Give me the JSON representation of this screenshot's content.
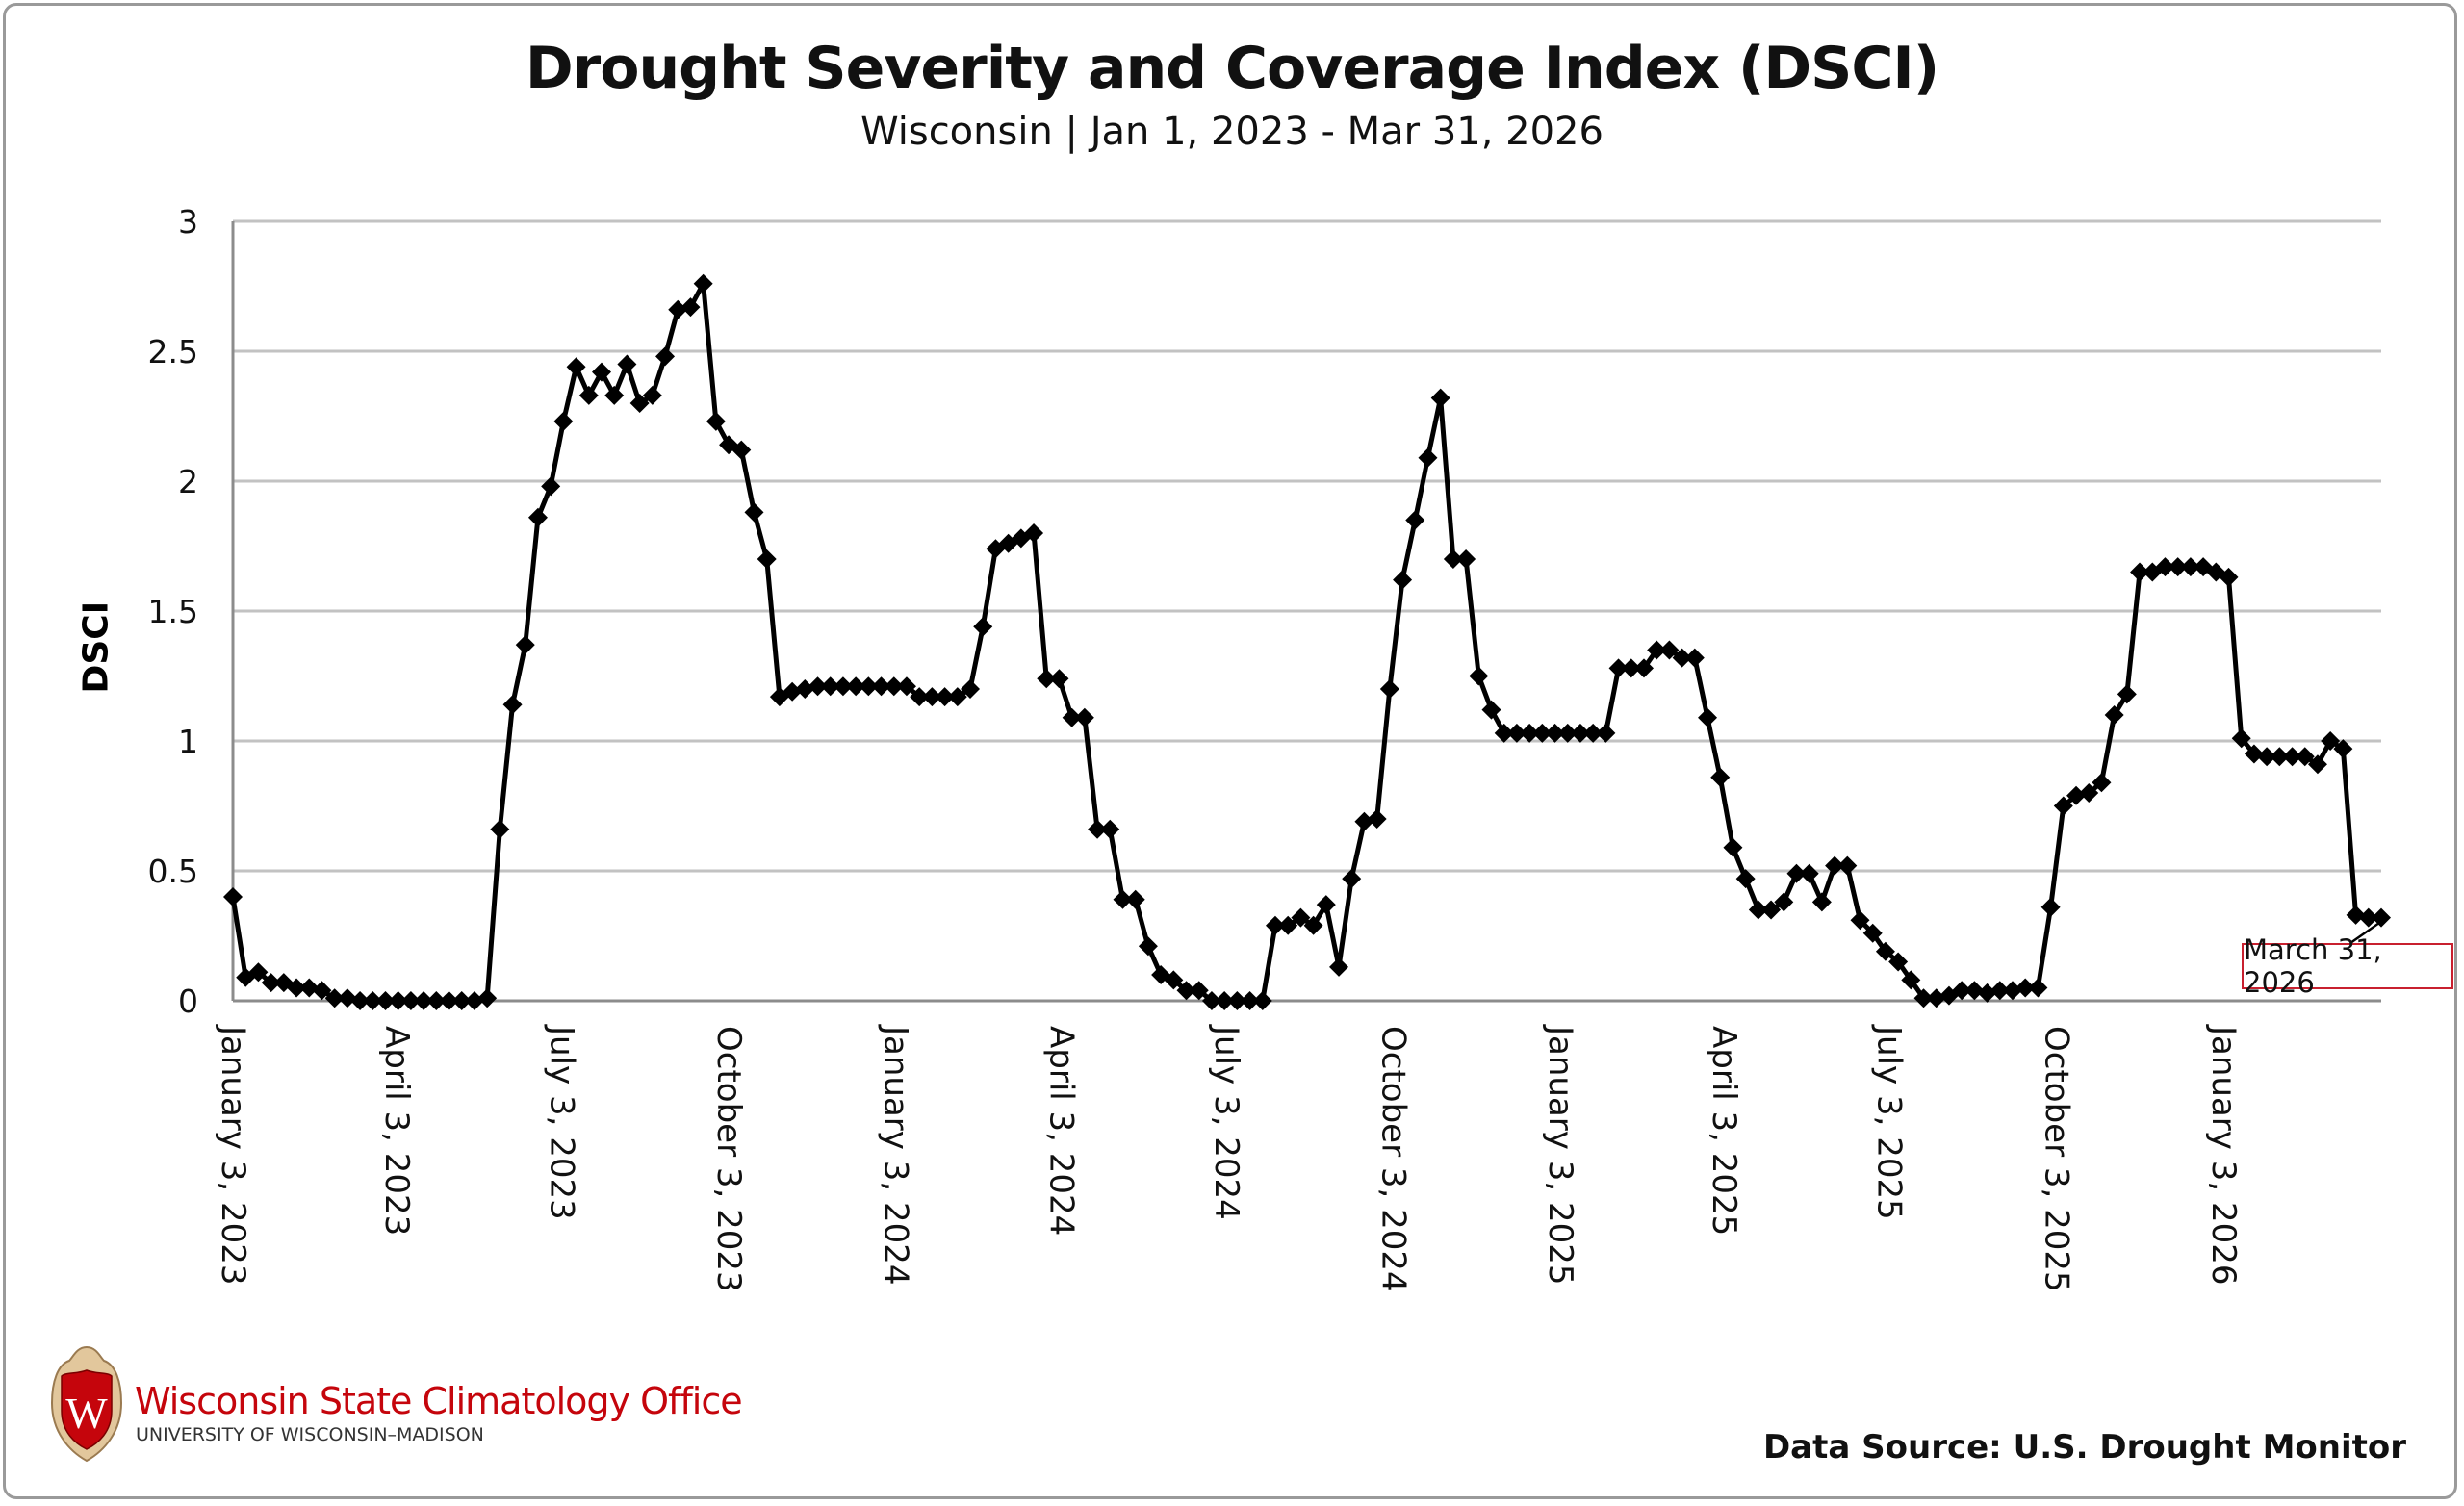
{
  "chart_data": {
    "type": "line",
    "title": "Drought Severity and Coverage Index (DSCI)",
    "subtitle": "Wisconsin | Jan 1, 2023 - Mar 31, 2026",
    "xlabel": "",
    "ylabel": "DSCI",
    "ylim": [
      0,
      3
    ],
    "yticks": [
      "0",
      "0.5",
      "1",
      "1.5",
      "2",
      "2.5",
      "3"
    ],
    "grid": true,
    "marker": "diamond",
    "series_color": "#000000",
    "x_start": "2023-01-03",
    "x_interval_days": 7,
    "x_end": "2026-03-31",
    "xticks": [
      "January 3, 2023",
      "April 3, 2023",
      "July 3, 2023",
      "October 3, 2023",
      "January 3, 2024",
      "April 3, 2024",
      "July 3, 2024",
      "October 3, 2024",
      "January 3, 2025",
      "April 3, 2025",
      "July 3, 2025",
      "October 3, 2025",
      "January 3, 2026"
    ],
    "series": [
      {
        "name": "DSCI",
        "values": [
          0.4,
          0.09,
          0.11,
          0.07,
          0.07,
          0.05,
          0.05,
          0.04,
          0.01,
          0.01,
          0,
          0,
          0,
          0,
          0,
          0,
          0,
          0,
          0,
          0,
          0.01,
          0.66,
          1.14,
          1.37,
          1.86,
          1.98,
          2.23,
          2.44,
          2.33,
          2.42,
          2.33,
          2.45,
          2.3,
          2.33,
          2.48,
          2.66,
          2.67,
          2.76,
          2.23,
          2.14,
          2.12,
          1.88,
          1.7,
          1.17,
          1.19,
          1.2,
          1.21,
          1.21,
          1.21,
          1.21,
          1.21,
          1.21,
          1.21,
          1.21,
          1.17,
          1.17,
          1.17,
          1.17,
          1.2,
          1.44,
          1.74,
          1.76,
          1.78,
          1.8,
          1.24,
          1.24,
          1.09,
          1.09,
          0.66,
          0.66,
          0.39,
          0.39,
          0.21,
          0.1,
          0.08,
          0.04,
          0.04,
          0,
          0,
          0,
          0,
          0,
          0.29,
          0.29,
          0.32,
          0.29,
          0.37,
          0.13,
          0.47,
          0.69,
          0.7,
          1.2,
          1.62,
          1.85,
          2.09,
          2.32,
          1.7,
          1.7,
          1.25,
          1.12,
          1.03,
          1.03,
          1.03,
          1.03,
          1.03,
          1.03,
          1.03,
          1.03,
          1.03,
          1.28,
          1.28,
          1.28,
          1.35,
          1.35,
          1.32,
          1.32,
          1.09,
          0.86,
          0.59,
          0.47,
          0.35,
          0.35,
          0.38,
          0.49,
          0.49,
          0.38,
          0.52,
          0.52,
          0.31,
          0.26,
          0.19,
          0.15,
          0.08,
          0.01,
          0.01,
          0.02,
          0.04,
          0.04,
          0.03,
          0.04,
          0.04,
          0.05,
          0.05,
          0.36,
          0.75,
          0.79,
          0.8,
          0.84,
          1.1,
          1.18,
          1.65,
          1.65,
          1.67,
          1.67,
          1.67,
          1.67,
          1.65,
          1.63,
          1.01,
          0.95,
          0.94,
          0.94,
          0.94,
          0.94,
          0.91,
          1.0,
          0.97,
          0.33,
          0.32,
          0.32
        ]
      }
    ],
    "annotations": [
      {
        "text": "March 31, 2026",
        "x": "2026-03-31",
        "border_color": "#c8202f"
      }
    ]
  },
  "footer": {
    "logo_name": "Wisconsin State Climatology Office",
    "logo_university": "UNIVERSITY OF WISCONSIN–MADISON",
    "logo_shield_letter": "W",
    "brand_color": "#c5050c",
    "data_source": "Data Source: U.S. Drought Monitor"
  }
}
